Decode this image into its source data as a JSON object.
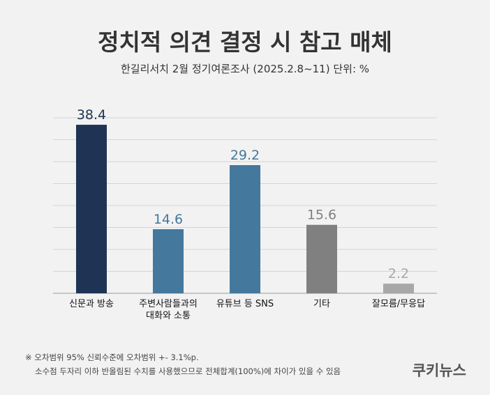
{
  "chart_data": {
    "type": "bar",
    "title": "정치적 의견 결정 시 참고 매체",
    "subtitle": "한길리서치 2월 정기여론조사 (2025.2.8~11) 단위: %",
    "categories": [
      "신문과 방송",
      "주변사람들과의 대화와 소통",
      "유튜브 등 SNS",
      "기타",
      "잘모름/무응답"
    ],
    "values": [
      38.4,
      14.6,
      29.2,
      15.6,
      2.2
    ],
    "colors": [
      "#1f3454",
      "#44789c",
      "#44789c",
      "#808080",
      "#a8a8a8"
    ],
    "ylim": [
      0,
      40
    ],
    "yticks": [
      0,
      5,
      10,
      15,
      20,
      25,
      30,
      35,
      40
    ],
    "grid": true,
    "notes": [
      "※ 오차범위 95% 신뢰수준에 오차범위 +- 3.1%p.",
      "소수점 두자리 이하 반올림된 수치를 사용했으므로 전체합계(100%)에 차이가 있을 수 있음"
    ],
    "source": "쿠키뉴스"
  }
}
